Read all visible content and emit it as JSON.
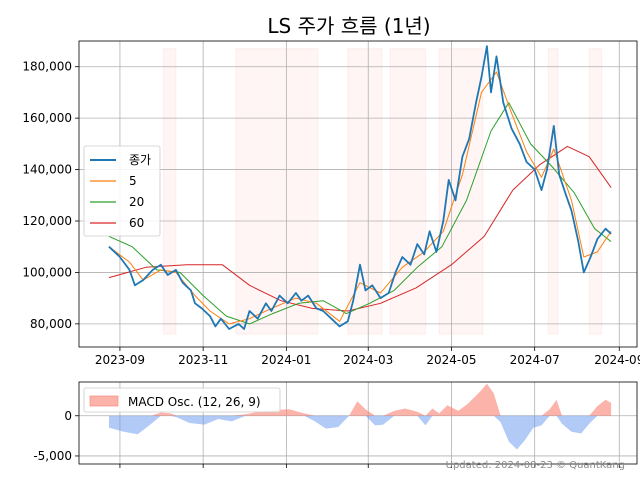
{
  "chart_data": [
    {
      "type": "line",
      "title": "LS 주가 흐름 (1년)",
      "x_ticks": [
        "2023-09",
        "2023-11",
        "2024-01",
        "2024-03",
        "2024-05",
        "2024-07",
        "2024-09"
      ],
      "y_ticks": [
        "80,000",
        "100,000",
        "120,000",
        "140,000",
        "160,000",
        "180,000"
      ],
      "ylim": [
        71000,
        190000
      ],
      "grid": true,
      "legend_position": "center-left",
      "shaded_periods": [
        [
          "2023-10-03",
          "2023-10-12"
        ],
        [
          "2023-11-25",
          "2024-01-24"
        ],
        [
          "2024-02-15",
          "2024-03-11"
        ],
        [
          "2024-03-17",
          "2024-04-12"
        ],
        [
          "2024-04-22",
          "2024-05-24"
        ],
        [
          "2024-07-11",
          "2024-07-18"
        ],
        [
          "2024-08-10",
          "2024-08-19"
        ]
      ],
      "series": [
        {
          "name": "종가",
          "color": "#1f77b4",
          "points": [
            [
              "2023-08-24",
              110000
            ],
            [
              "2023-09-01",
              106000
            ],
            [
              "2023-09-08",
              101000
            ],
            [
              "2023-09-12",
              95000
            ],
            [
              "2023-09-18",
              97000
            ],
            [
              "2023-09-25",
              101000
            ],
            [
              "2023-10-01",
              103000
            ],
            [
              "2023-10-06",
              99000
            ],
            [
              "2023-10-12",
              101000
            ],
            [
              "2023-10-17",
              96000
            ],
            [
              "2023-10-23",
              93000
            ],
            [
              "2023-10-26",
              88000
            ],
            [
              "2023-10-31",
              86000
            ],
            [
              "2023-11-06",
              83000
            ],
            [
              "2023-11-10",
              79000
            ],
            [
              "2023-11-14",
              82000
            ],
            [
              "2023-11-20",
              78000
            ],
            [
              "2023-11-27",
              80000
            ],
            [
              "2023-12-01",
              78000
            ],
            [
              "2023-12-05",
              85000
            ],
            [
              "2023-12-11",
              82000
            ],
            [
              "2023-12-17",
              88000
            ],
            [
              "2023-12-21",
              85000
            ],
            [
              "2023-12-27",
              91000
            ],
            [
              "2024-01-02",
              88000
            ],
            [
              "2024-01-08",
              92000
            ],
            [
              "2024-01-12",
              89000
            ],
            [
              "2024-01-17",
              91000
            ],
            [
              "2024-01-23",
              86000
            ],
            [
              "2024-01-28",
              85000
            ],
            [
              "2024-02-03",
              82000
            ],
            [
              "2024-02-09",
              79000
            ],
            [
              "2024-02-15",
              81000
            ],
            [
              "2024-02-19",
              89000
            ],
            [
              "2024-02-24",
              103000
            ],
            [
              "2024-02-28",
              93000
            ],
            [
              "2024-03-04",
              95000
            ],
            [
              "2024-03-10",
              90000
            ],
            [
              "2024-03-16",
              92000
            ],
            [
              "2024-03-21",
              100000
            ],
            [
              "2024-03-26",
              106000
            ],
            [
              "2024-04-01",
              103000
            ],
            [
              "2024-04-06",
              111000
            ],
            [
              "2024-04-11",
              107000
            ],
            [
              "2024-04-15",
              116000
            ],
            [
              "2024-04-20",
              108000
            ],
            [
              "2024-04-25",
              120000
            ],
            [
              "2024-04-29",
              136000
            ],
            [
              "2024-05-04",
              128000
            ],
            [
              "2024-05-09",
              145000
            ],
            [
              "2024-05-14",
              152000
            ],
            [
              "2024-05-19",
              166000
            ],
            [
              "2024-05-23",
              176000
            ],
            [
              "2024-05-27",
              188000
            ],
            [
              "2024-05-30",
              170000
            ],
            [
              "2024-06-03",
              184000
            ],
            [
              "2024-06-08",
              166000
            ],
            [
              "2024-06-14",
              156000
            ],
            [
              "2024-06-20",
              150000
            ],
            [
              "2024-06-25",
              143000
            ],
            [
              "2024-07-01",
              140000
            ],
            [
              "2024-07-06",
              132000
            ],
            [
              "2024-07-10",
              140000
            ],
            [
              "2024-07-15",
              157000
            ],
            [
              "2024-07-19",
              138000
            ],
            [
              "2024-07-24",
              130000
            ],
            [
              "2024-07-28",
              124000
            ],
            [
              "2024-08-02",
              112000
            ],
            [
              "2024-08-06",
              100000
            ],
            [
              "2024-08-11",
              106000
            ],
            [
              "2024-08-16",
              113000
            ],
            [
              "2024-08-22",
              117000
            ],
            [
              "2024-08-26",
              115000
            ]
          ]
        },
        {
          "name": "5",
          "color": "#ff7f0e",
          "points": [
            [
              "2023-08-24",
              110000
            ],
            [
              "2023-09-08",
              104000
            ],
            [
              "2023-09-18",
              97000
            ],
            [
              "2023-10-01",
              101000
            ],
            [
              "2023-10-12",
              100000
            ],
            [
              "2023-10-26",
              91000
            ],
            [
              "2023-11-06",
              85000
            ],
            [
              "2023-11-20",
              80000
            ],
            [
              "2023-12-05",
              82000
            ],
            [
              "2023-12-21",
              86000
            ],
            [
              "2024-01-08",
              90000
            ],
            [
              "2024-01-23",
              88000
            ],
            [
              "2024-02-09",
              81000
            ],
            [
              "2024-02-24",
              96000
            ],
            [
              "2024-03-10",
              92000
            ],
            [
              "2024-03-26",
              102000
            ],
            [
              "2024-04-11",
              108000
            ],
            [
              "2024-04-25",
              116000
            ],
            [
              "2024-05-09",
              138000
            ],
            [
              "2024-05-23",
              170000
            ],
            [
              "2024-06-03",
              178000
            ],
            [
              "2024-06-14",
              162000
            ],
            [
              "2024-06-25",
              147000
            ],
            [
              "2024-07-06",
              137000
            ],
            [
              "2024-07-15",
              148000
            ],
            [
              "2024-07-28",
              128000
            ],
            [
              "2024-08-06",
              106000
            ],
            [
              "2024-08-16",
              108000
            ],
            [
              "2024-08-26",
              116000
            ]
          ]
        },
        {
          "name": "20",
          "color": "#2ca02c",
          "points": [
            [
              "2023-08-24",
              114000
            ],
            [
              "2023-09-10",
              110000
            ],
            [
              "2023-09-28",
              101000
            ],
            [
              "2023-10-15",
              100000
            ],
            [
              "2023-11-01",
              91000
            ],
            [
              "2023-11-18",
              83000
            ],
            [
              "2023-12-05",
              80000
            ],
            [
              "2023-12-22",
              84000
            ],
            [
              "2024-01-10",
              88000
            ],
            [
              "2024-01-28",
              89000
            ],
            [
              "2024-02-14",
              84000
            ],
            [
              "2024-03-02",
              88000
            ],
            [
              "2024-03-20",
              93000
            ],
            [
              "2024-04-06",
              102000
            ],
            [
              "2024-04-24",
              110000
            ],
            [
              "2024-05-12",
              128000
            ],
            [
              "2024-05-30",
              155000
            ],
            [
              "2024-06-12",
              166000
            ],
            [
              "2024-06-28",
              150000
            ],
            [
              "2024-07-14",
              141000
            ],
            [
              "2024-07-30",
              131000
            ],
            [
              "2024-08-14",
              117000
            ],
            [
              "2024-08-26",
              112000
            ]
          ]
        },
        {
          "name": "60",
          "color": "#d62728",
          "points": [
            [
              "2023-08-24",
              98000
            ],
            [
              "2023-09-20",
              102000
            ],
            [
              "2023-10-20",
              103000
            ],
            [
              "2023-11-15",
              103000
            ],
            [
              "2023-12-05",
              95000
            ],
            [
              "2023-12-28",
              89000
            ],
            [
              "2024-01-20",
              86000
            ],
            [
              "2024-02-15",
              85000
            ],
            [
              "2024-03-10",
              88000
            ],
            [
              "2024-04-05",
              94000
            ],
            [
              "2024-05-01",
              103000
            ],
            [
              "2024-05-25",
              114000
            ],
            [
              "2024-06-15",
              132000
            ],
            [
              "2024-07-05",
              142000
            ],
            [
              "2024-07-25",
              149000
            ],
            [
              "2024-08-10",
              145000
            ],
            [
              "2024-08-26",
              133000
            ]
          ]
        }
      ]
    },
    {
      "type": "area",
      "y_ticks": [
        "-5,000",
        "0"
      ],
      "ylim": [
        -6000,
        4200
      ],
      "grid": true,
      "legend_position": "top-left",
      "positive_color": "#fa8072",
      "negative_color": "#6495ed",
      "series": [
        {
          "name": "MACD Osc. (12, 26, 9)",
          "points": [
            [
              "2023-08-24",
              -1500
            ],
            [
              "2023-09-04",
              -2000
            ],
            [
              "2023-09-14",
              -2300
            ],
            [
              "2023-09-24",
              -1000
            ],
            [
              "2023-10-01",
              400
            ],
            [
              "2023-10-08",
              300
            ],
            [
              "2023-10-13",
              -200
            ],
            [
              "2023-10-22",
              -900
            ],
            [
              "2023-11-02",
              -1100
            ],
            [
              "2023-11-12",
              -400
            ],
            [
              "2023-11-22",
              -700
            ],
            [
              "2023-12-02",
              200
            ],
            [
              "2023-12-12",
              500
            ],
            [
              "2023-12-22",
              700
            ],
            [
              "2024-01-03",
              800
            ],
            [
              "2024-01-14",
              300
            ],
            [
              "2024-01-22",
              -700
            ],
            [
              "2024-01-30",
              -1600
            ],
            [
              "2024-02-08",
              -1400
            ],
            [
              "2024-02-16",
              0
            ],
            [
              "2024-02-22",
              1800
            ],
            [
              "2024-02-28",
              800
            ],
            [
              "2024-03-06",
              -1200
            ],
            [
              "2024-03-12",
              -1100
            ],
            [
              "2024-03-20",
              600
            ],
            [
              "2024-03-28",
              900
            ],
            [
              "2024-04-06",
              500
            ],
            [
              "2024-04-12",
              -1200
            ],
            [
              "2024-04-17",
              900
            ],
            [
              "2024-04-22",
              300
            ],
            [
              "2024-04-28",
              1300
            ],
            [
              "2024-05-06",
              600
            ],
            [
              "2024-05-13",
              1500
            ],
            [
              "2024-05-22",
              3000
            ],
            [
              "2024-05-27",
              4000
            ],
            [
              "2024-06-01",
              2800
            ],
            [
              "2024-06-06",
              -800
            ],
            [
              "2024-06-12",
              -3200
            ],
            [
              "2024-06-18",
              -4200
            ],
            [
              "2024-06-24",
              -3000
            ],
            [
              "2024-06-30",
              -1500
            ],
            [
              "2024-07-06",
              -1200
            ],
            [
              "2024-07-12",
              800
            ],
            [
              "2024-07-17",
              2000
            ],
            [
              "2024-07-21",
              -1000
            ],
            [
              "2024-07-28",
              -2000
            ],
            [
              "2024-08-04",
              -2200
            ],
            [
              "2024-08-10",
              -1000
            ],
            [
              "2024-08-16",
              1200
            ],
            [
              "2024-08-22",
              2000
            ],
            [
              "2024-08-26",
              1600
            ]
          ]
        }
      ]
    }
  ],
  "watermark": "Updated: 2024-08-23 © QuantKang"
}
